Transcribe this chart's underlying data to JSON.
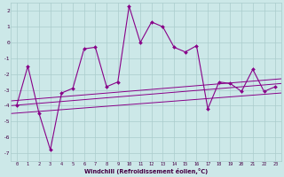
{
  "xlabel": "Windchill (Refroidissement éolien,°C)",
  "bg_color": "#cce8e8",
  "line_color": "#880088",
  "grid_color": "#aacccc",
  "x_main": [
    0,
    1,
    2,
    3,
    4,
    5,
    6,
    7,
    8,
    9,
    10,
    11,
    12,
    13,
    14,
    15,
    16,
    17,
    18,
    19,
    20,
    21,
    22,
    23
  ],
  "y_main": [
    -4.0,
    -1.5,
    -4.5,
    -6.8,
    -3.2,
    -2.9,
    -0.4,
    -0.3,
    -2.8,
    -2.5,
    2.3,
    0.0,
    1.3,
    1.0,
    -0.3,
    -0.6,
    -0.2,
    -4.2,
    -2.5,
    -2.6,
    -3.1,
    -1.7,
    -3.1,
    -2.8
  ],
  "ref_lines": [
    [
      [
        -0.5,
        23.5
      ],
      [
        -3.7,
        -2.3
      ]
    ],
    [
      [
        -0.5,
        23.5
      ],
      [
        -4.0,
        -2.6
      ]
    ],
    [
      [
        -0.5,
        23.5
      ],
      [
        -4.5,
        -3.2
      ]
    ]
  ],
  "ylim": [
    -7.5,
    2.5
  ],
  "xlim": [
    -0.5,
    23.5
  ],
  "yticks": [
    -7,
    -6,
    -5,
    -4,
    -3,
    -2,
    -1,
    0,
    1,
    2
  ],
  "xticks": [
    0,
    1,
    2,
    3,
    4,
    5,
    6,
    7,
    8,
    9,
    10,
    11,
    12,
    13,
    14,
    15,
    16,
    17,
    18,
    19,
    20,
    21,
    22,
    23
  ]
}
